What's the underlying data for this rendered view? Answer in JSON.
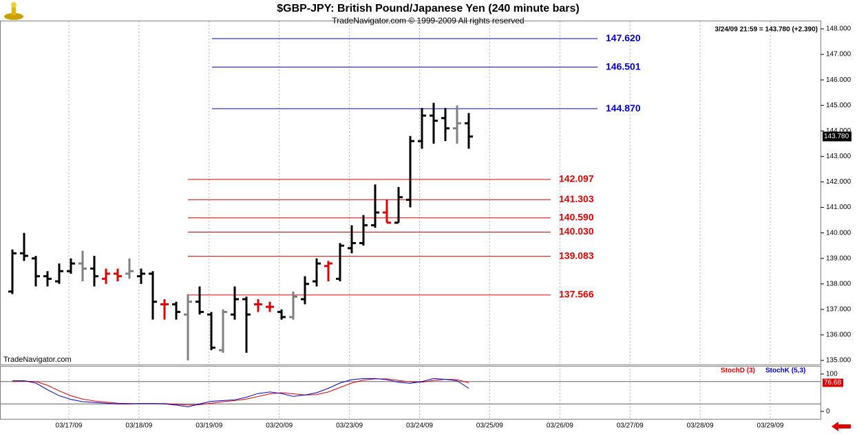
{
  "chart_data": {
    "type": "ohlc",
    "title": "$GBP-JPY:  British Pound/Japanese Yen  (240 minute bars)",
    "subtitle": "TradeNavigator.com © 1999-2009 All rights reserved",
    "quote": "3/24/09 21:59 = 143.780 (+2.390)",
    "watermark": "TradeNavigator.com",
    "last": {
      "value": 143.78,
      "label": "143.780"
    },
    "ylim": [
      135,
      148
    ],
    "yticks": [
      {
        "value": 135,
        "label": "135.000"
      },
      {
        "value": 136,
        "label": "136.000"
      },
      {
        "value": 137,
        "label": "137.000"
      },
      {
        "value": 138,
        "label": "138.000"
      },
      {
        "value": 139,
        "label": "139.000"
      },
      {
        "value": 140,
        "label": "140.000"
      },
      {
        "value": 141,
        "label": "141.000"
      },
      {
        "value": 142,
        "label": "142.000"
      },
      {
        "value": 143,
        "label": "143.000"
      },
      {
        "value": 144,
        "label": "144.000"
      },
      {
        "value": 145,
        "label": "145.000"
      },
      {
        "value": 146,
        "label": "146.000"
      },
      {
        "value": 147,
        "label": "147.000"
      },
      {
        "value": 148,
        "label": "148.000"
      }
    ],
    "xticks": [
      "03/17/09",
      "03/18/09",
      "03/19/09",
      "03/20/09",
      "03/23/09",
      "03/24/09",
      "03/25/09",
      "03/26/09",
      "03/27/09",
      "03/28/09",
      "03/29/09"
    ],
    "bars": {
      "open": [
        137.7,
        139.2,
        139.0,
        138.3,
        138.1,
        138.5,
        138.8,
        138.6,
        138.2,
        138.4,
        138.4,
        138.3,
        138.4,
        137.2,
        137.2,
        136.8,
        137.3,
        136.8,
        135.4,
        136.8,
        137.4,
        137.2,
        137.1,
        136.9,
        136.7,
        137.4,
        138.1,
        138.7,
        138.2,
        139.4,
        139.6,
        140.3,
        140.8,
        140.4,
        141.3,
        143.6,
        144.6,
        144.5,
        144.1,
        144.3
      ],
      "high": [
        139.35,
        140.0,
        139.1,
        138.5,
        138.8,
        139.0,
        139.3,
        139.1,
        138.6,
        138.6,
        139.0,
        138.6,
        138.5,
        137.4,
        137.3,
        137.6,
        137.9,
        136.9,
        137.0,
        137.9,
        137.5,
        137.4,
        137.3,
        137.0,
        137.7,
        138.3,
        139.0,
        138.9,
        139.6,
        140.3,
        140.7,
        141.9,
        141.3,
        141.8,
        143.8,
        144.9,
        145.1,
        144.9,
        145.0,
        144.7
      ],
      "low": [
        137.6,
        138.9,
        137.9,
        137.9,
        138.0,
        138.4,
        138.1,
        137.9,
        138.0,
        138.1,
        138.2,
        138.0,
        136.6,
        136.6,
        136.6,
        135.0,
        136.8,
        135.4,
        135.3,
        136.6,
        135.3,
        136.9,
        136.9,
        136.6,
        136.6,
        137.2,
        137.9,
        138.1,
        138.1,
        139.2,
        139.5,
        140.2,
        140.4,
        140.4,
        141.0,
        143.3,
        143.5,
        143.6,
        143.5,
        143.3
      ],
      "close": [
        139.2,
        139.1,
        138.3,
        138.2,
        138.5,
        138.8,
        138.6,
        138.3,
        138.4,
        138.3,
        138.5,
        138.4,
        137.3,
        137.2,
        136.9,
        137.3,
        136.9,
        135.5,
        136.9,
        137.4,
        136.8,
        137.2,
        137.1,
        136.7,
        137.5,
        138.0,
        138.8,
        138.8,
        139.5,
        139.6,
        140.3,
        140.8,
        140.4,
        141.4,
        143.6,
        144.6,
        144.4,
        144.1,
        144.3,
        143.78
      ],
      "colors": [
        "#000000",
        "#000000",
        "#000000",
        "#000000",
        "#000000",
        "#000000",
        "#808080",
        "#000000",
        "#e00000",
        "#e00000",
        "#808080",
        "#000000",
        "#000000",
        "#e00000",
        "#000000",
        "#808080",
        "#000000",
        "#000000",
        "#808080",
        "#000000",
        "#000000",
        "#e00000",
        "#e00000",
        "#000000",
        "#808080",
        "#000000",
        "#000000",
        "#e00000",
        "#000000",
        "#000000",
        "#000000",
        "#000000",
        "#e00000",
        "#000000",
        "#000000",
        "#000000",
        "#000000",
        "#000000",
        "#808080",
        "#000000"
      ]
    },
    "levels": [
      {
        "value": 147.62,
        "label": "147.620",
        "color": "#0000cc"
      },
      {
        "value": 146.501,
        "label": "146.501",
        "color": "#0000cc"
      },
      {
        "value": 144.87,
        "label": "144.870",
        "color": "#0000cc"
      },
      {
        "value": 142.097,
        "label": "142.097",
        "color": "#dd0000"
      },
      {
        "value": 141.303,
        "label": "141.303",
        "color": "#dd0000"
      },
      {
        "value": 140.59,
        "label": "140.590",
        "color": "#dd0000"
      },
      {
        "value": 140.03,
        "label": "140.030",
        "color": "#dd0000"
      },
      {
        "value": 139.083,
        "label": "139.083",
        "color": "#dd0000"
      },
      {
        "value": 137.566,
        "label": "137.566",
        "color": "#dd0000"
      }
    ],
    "stoch": {
      "type": "line",
      "ylim": [
        -20,
        120
      ],
      "yticks": [
        100,
        0
      ],
      "levels": [
        80,
        20
      ],
      "series": [
        {
          "name": "StochD (3)",
          "color": "#dd0000",
          "values": [
            80,
            81,
            80,
            70,
            55,
            42,
            33,
            28,
            25,
            22,
            21,
            21,
            21,
            21,
            19,
            17,
            18,
            22,
            26,
            29,
            33,
            40,
            47,
            50,
            47,
            44,
            45,
            52,
            64,
            76,
            84,
            87,
            87,
            83,
            79,
            78,
            83,
            86,
            85,
            76.68
          ]
        },
        {
          "name": "StochK (5,3)",
          "color": "#0000cc",
          "values": [
            82,
            82,
            76,
            58,
            42,
            32,
            26,
            24,
            22,
            20,
            20,
            21,
            21,
            20,
            17,
            12,
            20,
            27,
            29,
            31,
            38,
            48,
            52,
            48,
            40,
            44,
            50,
            62,
            76,
            85,
            88,
            88,
            85,
            78,
            75,
            80,
            88,
            86,
            82,
            62
          ]
        }
      ]
    }
  }
}
